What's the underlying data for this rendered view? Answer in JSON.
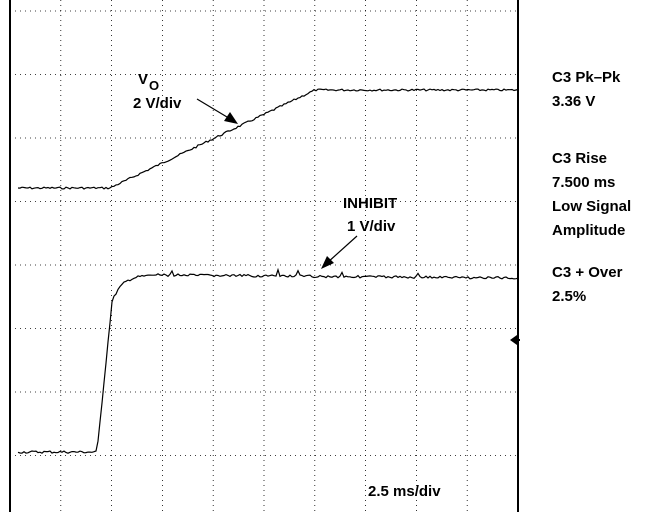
{
  "trace_labels": {
    "vo_main": "V",
    "vo_sub": "O",
    "vo_scale": "2 V/div",
    "inhibit": "INHIBIT",
    "inhibit_scale": "1 V/div",
    "time_scale": "2.5 ms/div"
  },
  "measurements": [
    {
      "name": "C3 Pk–Pk",
      "value": "3.36 V"
    },
    {
      "name": "C3 Rise",
      "value": "7.500 ms",
      "note": [
        "Low Signal",
        "Amplitude"
      ]
    },
    {
      "name": "C3 + Over",
      "value": "2.5%"
    }
  ]
}
